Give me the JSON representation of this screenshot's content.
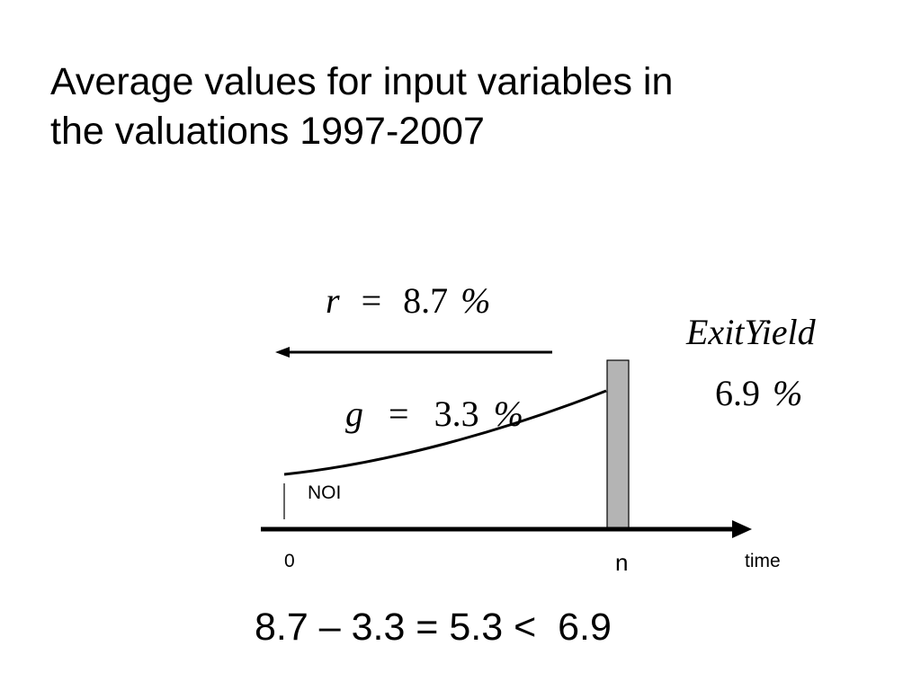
{
  "slide": {
    "title_line1": "Average values for input variables in",
    "title_line2": "the valuations 1997-2007"
  },
  "diagram": {
    "r_var": "r",
    "r_eq": "=",
    "r_value": "8.7",
    "r_pct": "%",
    "g_var": "g",
    "g_eq": "=",
    "g_value": "3.3",
    "g_pct": "%",
    "exit_label": "ExitYield",
    "exit_value": "6.9",
    "exit_pct": "%",
    "noi_label": "NOI",
    "axis_start": "0",
    "axis_n": "n",
    "axis_time": "time",
    "equation": "8.7 – 3.3 = 5.3 <  6.9"
  }
}
